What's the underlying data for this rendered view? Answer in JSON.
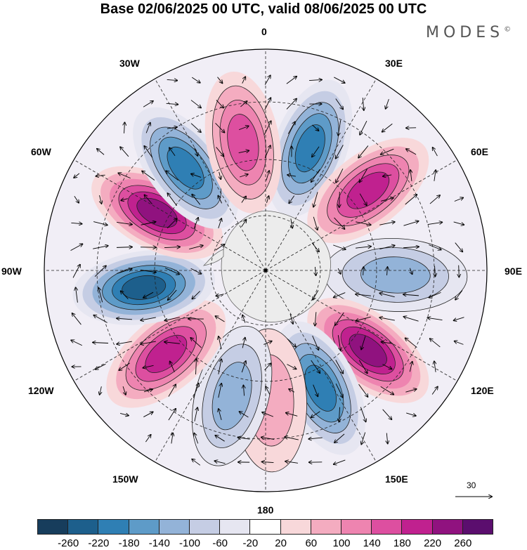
{
  "title": "Base 02/06/2025 00 UTC, valid 08/06/2025 00 UTC",
  "brand": "MODES",
  "brand_mark": "©",
  "longitude_labels": {
    "lon_0": "0",
    "lon_30e": "30E",
    "lon_60e": "60E",
    "lon_90e": "90E",
    "lon_120e": "120E",
    "lon_150e": "150E",
    "lon_180": "180",
    "lon_150w": "150W",
    "lon_120w": "120W",
    "lon_90w": "90W",
    "lon_60w": "60W",
    "lon_30w": "30W"
  },
  "reference_vector": {
    "value": "30"
  },
  "colorbar": {
    "colors": [
      "#173d5c",
      "#1d5f8c",
      "#2f7fb4",
      "#5e9bc8",
      "#93b3d8",
      "#c5cde4",
      "#e6e6f1",
      "#ffffff",
      "#f8d8da",
      "#f4acc0",
      "#ee84b0",
      "#dd4fa0",
      "#c0218f",
      "#90127f",
      "#5b0e6e"
    ],
    "tick_labels": [
      "-260",
      "-220",
      "-180",
      "-140",
      "-100",
      "-60",
      "-20",
      "20",
      "60",
      "100",
      "140",
      "180",
      "220",
      "260"
    ]
  },
  "anomaly_centers": [
    {
      "lon": 20,
      "sign": "negative",
      "strength": 200
    },
    {
      "lon": 52,
      "sign": "positive",
      "strength": 230
    },
    {
      "lon": 92,
      "sign": "negative",
      "strength": 150
    },
    {
      "lon": 128,
      "sign": "positive",
      "strength": 260
    },
    {
      "lon": 155,
      "sign": "negative",
      "strength": 230
    },
    {
      "lon": 178,
      "sign": "positive",
      "strength": 110
    },
    {
      "lon": -165,
      "sign": "negative",
      "strength": 150
    },
    {
      "lon": -130,
      "sign": "positive",
      "strength": 200
    },
    {
      "lon": -98,
      "sign": "negative",
      "strength": 270
    },
    {
      "lon": -62,
      "sign": "positive",
      "strength": 270
    },
    {
      "lon": -38,
      "sign": "negative",
      "strength": 230
    },
    {
      "lon": -10,
      "sign": "positive",
      "strength": 160
    }
  ]
}
